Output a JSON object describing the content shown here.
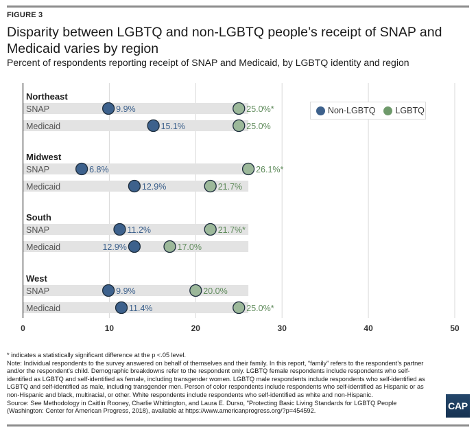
{
  "figure_label": "FIGURE 3",
  "title": "Disparity between LGBTQ and non-LGBTQ people’s receipt of SNAP and Medicaid varies by region",
  "subtitle": "Percent of respondents reporting receipt of SNAP and Medicaid, by LGBTQ identity and region",
  "legend": {
    "non_lgbtq": "Non-LGBTQ",
    "lgbtq": "LGBTQ"
  },
  "colors": {
    "non_lgbtq": "#3d618c",
    "lgbtq": "#9cb89a",
    "lgbtq_text": "#5e8a5a",
    "non_lgbtq_text": "#3d618c",
    "row_band": "#e3e3e3",
    "gridline": "#d9d9d9"
  },
  "chart_data": {
    "type": "dot",
    "title": "Disparity between LGBTQ and non-LGBTQ people’s receipt of SNAP and Medicaid varies by region",
    "subtitle": "Percent of respondents reporting receipt of SNAP and Medicaid, by LGBTQ identity and region",
    "xlabel": "",
    "ylabel": "",
    "xlim": [
      0,
      50
    ],
    "xticks": [
      0,
      10,
      20,
      30,
      40,
      50
    ],
    "grid": true,
    "legend_position": "top-right",
    "series_names": [
      "Non-LGBTQ",
      "LGBTQ"
    ],
    "groups": [
      {
        "region": "Northeast",
        "rows": [
          {
            "label": "SNAP",
            "non_lgbtq": 9.9,
            "lgbtq": 25.0,
            "non_lgbtq_label": "9.9%",
            "lgbtq_label": "25.0%*",
            "significant": true
          },
          {
            "label": "Medicaid",
            "non_lgbtq": 15.1,
            "lgbtq": 25.0,
            "non_lgbtq_label": "15.1%",
            "lgbtq_label": "25.0%",
            "significant": false
          }
        ]
      },
      {
        "region": "Midwest",
        "rows": [
          {
            "label": "SNAP",
            "non_lgbtq": 6.8,
            "lgbtq": 26.1,
            "non_lgbtq_label": "6.8%",
            "lgbtq_label": "26.1%*",
            "significant": true
          },
          {
            "label": "Medicaid",
            "non_lgbtq": 12.9,
            "lgbtq": 21.7,
            "non_lgbtq_label": "12.9%",
            "lgbtq_label": "21.7%",
            "significant": false
          }
        ]
      },
      {
        "region": "South",
        "rows": [
          {
            "label": "SNAP",
            "non_lgbtq": 11.2,
            "lgbtq": 21.7,
            "non_lgbtq_label": "11.2%",
            "lgbtq_label": "21.7%*",
            "significant": true
          },
          {
            "label": "Medicaid",
            "non_lgbtq": 12.9,
            "lgbtq": 17.0,
            "non_lgbtq_label": "12.9%",
            "lgbtq_label": "17.0%",
            "significant": false
          }
        ]
      },
      {
        "region": "West",
        "rows": [
          {
            "label": "SNAP",
            "non_lgbtq": 9.9,
            "lgbtq": 20.0,
            "non_lgbtq_label": "9.9%",
            "lgbtq_label": "20.0%",
            "significant": false
          },
          {
            "label": "Medicaid",
            "non_lgbtq": 11.4,
            "lgbtq": 25.0,
            "non_lgbtq_label": "11.4%",
            "lgbtq_label": "25.0%*",
            "significant": true
          }
        ]
      }
    ]
  },
  "notes": {
    "significance": "* indicates a statistically significant difference at the p <.05 level.",
    "note": "Note: Individual respondents to the survey answered on behalf of themselves and their family. In this report, “family” refers to the respondent’s partner and/or the respondent’s child. Demographic breakdowns refer to the respondent only. LGBTQ female respondents include respondents who self-identified as LGBTQ and self-identified as female, including transgender women. LGBTQ male respondents include respondents who self-identified as LGBTQ and self-identified as male, including transgender men. Person of color respondents include respondents who self-identified as Hispanic or as non-Hispanic and black, multiracial, or other. White respondents include respondents who self-identified as white and non-Hispanic.",
    "source": "Source: See Methodology in Caitlin Rooney, Charlie Whittington, and Laura E. Durso, \"Protecting Basic Living Standards for LGBTQ People (Washington: Center for American Progress, 2018), available at https://www.americanprogress.org/?p=454592."
  },
  "logo": "CAP"
}
